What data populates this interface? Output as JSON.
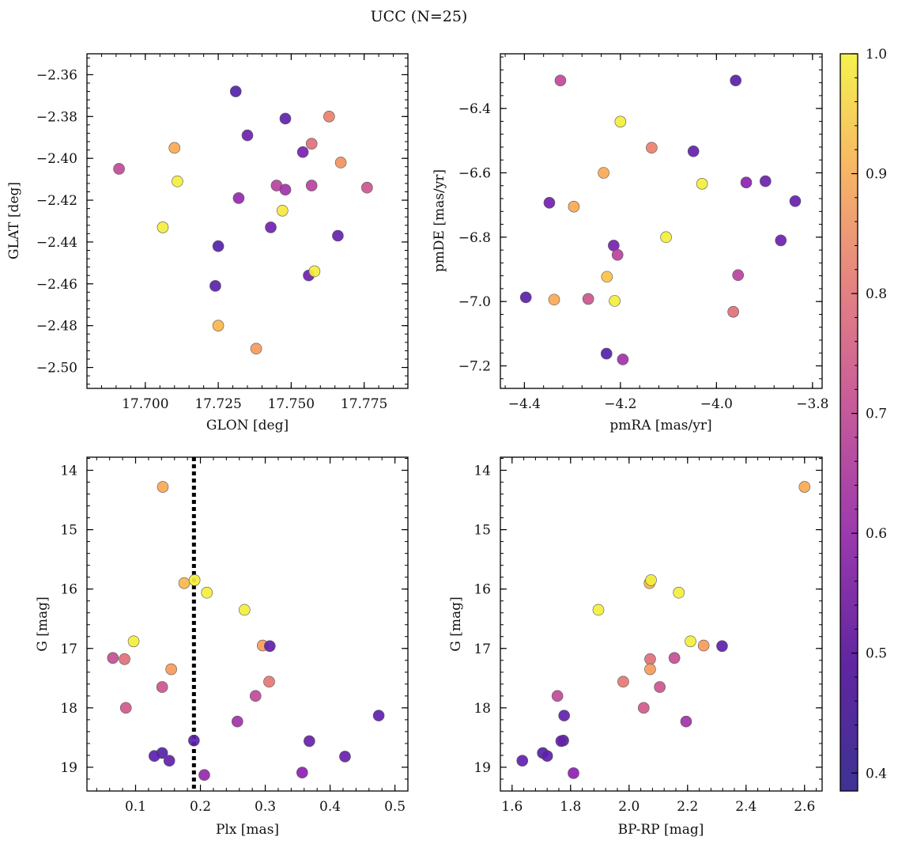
{
  "title": "UCC (N=25)",
  "colorbar": {
    "colormap": "plasma",
    "range": [
      0.385,
      1.0
    ],
    "ticks": [
      0.4,
      0.5,
      0.6,
      0.7,
      0.8,
      0.9,
      1.0
    ],
    "tick_labels": [
      "0.4",
      "0.5",
      "0.6",
      "0.7",
      "0.8",
      "0.9",
      "1.0"
    ]
  },
  "chart_data": [
    {
      "type": "scatter",
      "xlabel": "GLON [deg]",
      "ylabel": "GLAT [deg]",
      "xlim": [
        17.68,
        17.79
      ],
      "ylim": [
        -2.51,
        -2.35
      ],
      "xticks": [
        17.7,
        17.725,
        17.75,
        17.775
      ],
      "xtick_labels": [
        "17.700",
        "17.725",
        "17.750",
        "17.775"
      ],
      "yticks": [
        -2.36,
        -2.38,
        -2.4,
        -2.42,
        -2.44,
        -2.46,
        -2.48,
        -2.5
      ],
      "ytick_labels": [
        "−2.36",
        "−2.38",
        "−2.40",
        "−2.42",
        "−2.44",
        "−2.46",
        "−2.48",
        "−2.50"
      ],
      "points": [
        {
          "x": 17.731,
          "y": -2.368,
          "c": 0.4
        },
        {
          "x": 17.748,
          "y": -2.381,
          "c": 0.42
        },
        {
          "x": 17.763,
          "y": -2.38,
          "c": 0.76
        },
        {
          "x": 17.735,
          "y": -2.389,
          "c": 0.44
        },
        {
          "x": 17.757,
          "y": -2.393,
          "c": 0.72
        },
        {
          "x": 17.754,
          "y": -2.397,
          "c": 0.46
        },
        {
          "x": 17.71,
          "y": -2.395,
          "c": 0.85
        },
        {
          "x": 17.767,
          "y": -2.402,
          "c": 0.8
        },
        {
          "x": 17.691,
          "y": -2.405,
          "c": 0.62
        },
        {
          "x": 17.711,
          "y": -2.411,
          "c": 0.98
        },
        {
          "x": 17.745,
          "y": -2.413,
          "c": 0.6
        },
        {
          "x": 17.748,
          "y": -2.415,
          "c": 0.55
        },
        {
          "x": 17.757,
          "y": -2.413,
          "c": 0.6
        },
        {
          "x": 17.776,
          "y": -2.414,
          "c": 0.65
        },
        {
          "x": 17.732,
          "y": -2.419,
          "c": 0.52
        },
        {
          "x": 17.747,
          "y": -2.425,
          "c": 0.97
        },
        {
          "x": 17.706,
          "y": -2.433,
          "c": 0.98
        },
        {
          "x": 17.743,
          "y": -2.433,
          "c": 0.45
        },
        {
          "x": 17.766,
          "y": -2.437,
          "c": 0.43
        },
        {
          "x": 17.725,
          "y": -2.442,
          "c": 0.4
        },
        {
          "x": 17.756,
          "y": -2.456,
          "c": 0.44
        },
        {
          "x": 17.758,
          "y": -2.454,
          "c": 0.98
        },
        {
          "x": 17.724,
          "y": -2.461,
          "c": 0.41
        },
        {
          "x": 17.725,
          "y": -2.48,
          "c": 0.88
        },
        {
          "x": 17.738,
          "y": -2.491,
          "c": 0.82
        }
      ]
    },
    {
      "type": "scatter",
      "xlabel": "pmRA [mas/yr]",
      "ylabel": "pmDE [mas/yr]",
      "xlim": [
        -4.45,
        -3.78
      ],
      "ylim": [
        -7.27,
        -6.23
      ],
      "xticks": [
        -4.4,
        -4.2,
        -4.0,
        -3.8
      ],
      "xtick_labels": [
        "−4.4",
        "−4.2",
        "−4.0",
        "−3.8"
      ],
      "yticks": [
        -6.4,
        -6.6,
        -6.8,
        -7.0,
        -7.2
      ],
      "ytick_labels": [
        "−6.4",
        "−6.6",
        "−6.8",
        "−7.0",
        "−7.2"
      ],
      "points": [
        {
          "x": -4.325,
          "y": -6.313,
          "c": 0.62
        },
        {
          "x": -3.96,
          "y": -6.313,
          "c": 0.4
        },
        {
          "x": -4.2,
          "y": -6.441,
          "c": 0.98
        },
        {
          "x": -4.135,
          "y": -6.522,
          "c": 0.76
        },
        {
          "x": -4.048,
          "y": -6.533,
          "c": 0.42
        },
        {
          "x": -4.235,
          "y": -6.6,
          "c": 0.85
        },
        {
          "x": -3.938,
          "y": -6.63,
          "c": 0.5
        },
        {
          "x": -3.898,
          "y": -6.626,
          "c": 0.44
        },
        {
          "x": -4.03,
          "y": -6.634,
          "c": 0.98
        },
        {
          "x": -4.348,
          "y": -6.693,
          "c": 0.45
        },
        {
          "x": -4.297,
          "y": -6.705,
          "c": 0.85
        },
        {
          "x": -3.836,
          "y": -6.688,
          "c": 0.43
        },
        {
          "x": -4.105,
          "y": -6.8,
          "c": 0.98
        },
        {
          "x": -3.866,
          "y": -6.81,
          "c": 0.44
        },
        {
          "x": -4.214,
          "y": -6.826,
          "c": 0.46
        },
        {
          "x": -4.206,
          "y": -6.855,
          "c": 0.6
        },
        {
          "x": -3.955,
          "y": -6.918,
          "c": 0.6
        },
        {
          "x": -4.228,
          "y": -6.923,
          "c": 0.9
        },
        {
          "x": -4.397,
          "y": -6.987,
          "c": 0.41
        },
        {
          "x": -4.338,
          "y": -6.994,
          "c": 0.85
        },
        {
          "x": -4.267,
          "y": -6.992,
          "c": 0.65
        },
        {
          "x": -4.212,
          "y": -6.998,
          "c": 0.98
        },
        {
          "x": -3.965,
          "y": -7.032,
          "c": 0.72
        },
        {
          "x": -4.229,
          "y": -7.162,
          "c": 0.4
        },
        {
          "x": -4.195,
          "y": -7.18,
          "c": 0.55
        }
      ]
    },
    {
      "type": "scatter",
      "xlabel": "Plx [mas]",
      "ylabel": "G [mag]",
      "xlim": [
        0.025,
        0.52
      ],
      "ylim": [
        19.4,
        13.78
      ],
      "xticks": [
        0.1,
        0.2,
        0.3,
        0.4,
        0.5
      ],
      "xtick_labels": [
        "0.1",
        "0.2",
        "0.3",
        "0.4",
        "0.5"
      ],
      "yticks": [
        14,
        15,
        16,
        17,
        18,
        19
      ],
      "ytick_labels": [
        "14",
        "15",
        "16",
        "17",
        "18",
        "19"
      ],
      "vline": 0.19,
      "points": [
        {
          "x": 0.142,
          "y": 14.28,
          "c": 0.85
        },
        {
          "x": 0.175,
          "y": 15.9,
          "c": 0.88
        },
        {
          "x": 0.191,
          "y": 15.85,
          "c": 0.98
        },
        {
          "x": 0.21,
          "y": 16.06,
          "c": 0.98
        },
        {
          "x": 0.268,
          "y": 16.35,
          "c": 0.98
        },
        {
          "x": 0.097,
          "y": 16.88,
          "c": 0.98
        },
        {
          "x": 0.296,
          "y": 16.95,
          "c": 0.82
        },
        {
          "x": 0.307,
          "y": 16.96,
          "c": 0.42
        },
        {
          "x": 0.065,
          "y": 17.16,
          "c": 0.63
        },
        {
          "x": 0.083,
          "y": 17.18,
          "c": 0.72
        },
        {
          "x": 0.155,
          "y": 17.35,
          "c": 0.82
        },
        {
          "x": 0.306,
          "y": 17.56,
          "c": 0.74
        },
        {
          "x": 0.141,
          "y": 17.65,
          "c": 0.65
        },
        {
          "x": 0.285,
          "y": 17.8,
          "c": 0.62
        },
        {
          "x": 0.085,
          "y": 18.0,
          "c": 0.66
        },
        {
          "x": 0.475,
          "y": 18.13,
          "c": 0.42
        },
        {
          "x": 0.257,
          "y": 18.23,
          "c": 0.55
        },
        {
          "x": 0.19,
          "y": 18.55,
          "c": 0.41
        },
        {
          "x": 0.368,
          "y": 18.56,
          "c": 0.43
        },
        {
          "x": 0.141,
          "y": 18.76,
          "c": 0.4
        },
        {
          "x": 0.129,
          "y": 18.81,
          "c": 0.41
        },
        {
          "x": 0.423,
          "y": 18.82,
          "c": 0.43
        },
        {
          "x": 0.152,
          "y": 18.89,
          "c": 0.42
        },
        {
          "x": 0.357,
          "y": 19.09,
          "c": 0.5
        },
        {
          "x": 0.206,
          "y": 19.13,
          "c": 0.52
        }
      ]
    },
    {
      "type": "scatter",
      "xlabel": "BP-RP [mag]",
      "ylabel": "G [mag]",
      "xlim": [
        1.56,
        2.66
      ],
      "ylim": [
        19.4,
        13.78
      ],
      "xticks": [
        1.6,
        1.8,
        2.0,
        2.2,
        2.4,
        2.6
      ],
      "xtick_labels": [
        "1.6",
        "1.8",
        "2.0",
        "2.2",
        "2.4",
        "2.6"
      ],
      "yticks": [
        14,
        15,
        16,
        17,
        18,
        19
      ],
      "ytick_labels": [
        "14",
        "15",
        "16",
        "17",
        "18",
        "19"
      ],
      "points": [
        {
          "x": 2.6,
          "y": 14.28,
          "c": 0.85
        },
        {
          "x": 2.07,
          "y": 15.9,
          "c": 0.88
        },
        {
          "x": 2.075,
          "y": 15.85,
          "c": 0.98
        },
        {
          "x": 2.17,
          "y": 16.06,
          "c": 0.98
        },
        {
          "x": 1.895,
          "y": 16.35,
          "c": 0.98
        },
        {
          "x": 2.21,
          "y": 16.88,
          "c": 0.98
        },
        {
          "x": 2.255,
          "y": 16.95,
          "c": 0.82
        },
        {
          "x": 2.318,
          "y": 16.96,
          "c": 0.42
        },
        {
          "x": 2.155,
          "y": 17.16,
          "c": 0.63
        },
        {
          "x": 2.072,
          "y": 17.18,
          "c": 0.72
        },
        {
          "x": 2.072,
          "y": 17.35,
          "c": 0.82
        },
        {
          "x": 1.98,
          "y": 17.56,
          "c": 0.74
        },
        {
          "x": 2.105,
          "y": 17.65,
          "c": 0.65
        },
        {
          "x": 1.755,
          "y": 17.8,
          "c": 0.62
        },
        {
          "x": 2.05,
          "y": 18.0,
          "c": 0.66
        },
        {
          "x": 1.778,
          "y": 18.13,
          "c": 0.42
        },
        {
          "x": 2.195,
          "y": 18.23,
          "c": 0.55
        },
        {
          "x": 1.775,
          "y": 18.55,
          "c": 0.41
        },
        {
          "x": 1.768,
          "y": 18.56,
          "c": 0.43
        },
        {
          "x": 1.705,
          "y": 18.76,
          "c": 0.4
        },
        {
          "x": 1.72,
          "y": 18.81,
          "c": 0.41
        },
        {
          "x": 1.635,
          "y": 18.89,
          "c": 0.42
        },
        {
          "x": 1.81,
          "y": 19.1,
          "c": 0.5
        }
      ]
    }
  ]
}
